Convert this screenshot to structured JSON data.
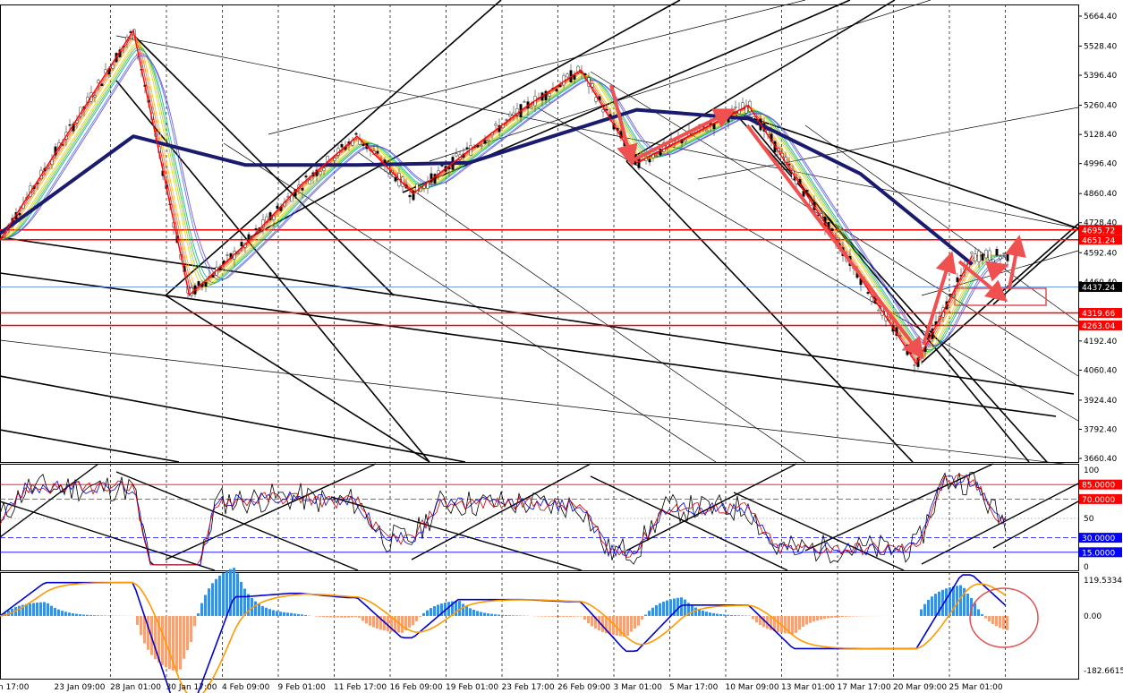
{
  "chart_data": [
    {
      "type": "candlestick",
      "panel": "price",
      "ylim": [
        3660.4,
        5664.4
      ],
      "y_ticks": [
        "5664.40",
        "5528.40",
        "5396.40",
        "5260.40",
        "5128.40",
        "4996.40",
        "4860.40",
        "4728.40",
        "4592.40",
        "4460.40",
        "4324.40",
        "4192.40",
        "4060.40",
        "3924.40",
        "3792.40",
        "3660.40"
      ],
      "price_levels": [
        {
          "value": 4695.72,
          "label": "4695.72",
          "color": "#ff0000"
        },
        {
          "value": 4651.24,
          "label": "4651.24",
          "color": "#ff0000"
        },
        {
          "value": 4319.66,
          "label": "4319.66",
          "color": "#ff0000"
        },
        {
          "value": 4263.04,
          "label": "4263.04",
          "color": "#ff0000"
        }
      ],
      "current_price": {
        "value": 4437.24,
        "label": "4437.24"
      },
      "x_labels": [
        "n 17:00",
        "23 Jan 09:00",
        "28 Jan 01:00",
        "30 Jan 17:00",
        "4 Feb 09:00",
        "9 Feb 01:00",
        "11 Feb 17:00",
        "16 Feb 09:00",
        "19 Feb 01:00",
        "23 Feb 17:00",
        "26 Feb 09:00",
        "3 Mar 01:00",
        "5 Mar 17:00",
        "10 Mar 09:00",
        "13 Mar 01:00",
        "17 Mar 17:00",
        "20 Mar 09:00",
        "25 Mar 01:00"
      ],
      "zigzag_pivots": [
        {
          "x": "start",
          "y": 4650
        },
        {
          "x": "28 Jan 01:00",
          "y": 5600
        },
        {
          "x": "30 Jan 17:00",
          "y": 4400
        },
        {
          "x": "4 Feb 09:00",
          "y": 4630
        },
        {
          "x": "9 Feb 01:00",
          "y": 4900
        },
        {
          "x": "11 Feb 17:00",
          "y": 5120
        },
        {
          "x": "16 Feb 09:00",
          "y": 4860
        },
        {
          "x": "23 Feb 17:00",
          "y": 5250
        },
        {
          "x": "26 Feb 09:00",
          "y": 5420
        },
        {
          "x": "3 Mar 01:00",
          "y": 5000
        },
        {
          "x": "10 Mar 09:00",
          "y": 5260
        },
        {
          "x": "20 Mar 09:00",
          "y": 4090
        },
        {
          "x": "25 Mar 01:00",
          "y": 4580
        }
      ],
      "long_ma_line": [
        {
          "x": "start",
          "y": 4680
        },
        {
          "x": "28 Jan 01:00",
          "y": 5120
        },
        {
          "x": "4 Feb 09:00",
          "y": 4990
        },
        {
          "x": "11 Feb 17:00",
          "y": 4990
        },
        {
          "x": "19 Feb 01:00",
          "y": 5000
        },
        {
          "x": "26 Feb 09:00",
          "y": 5160
        },
        {
          "x": "3 Mar 01:00",
          "y": 5240
        },
        {
          "x": "10 Mar 09:00",
          "y": 5200
        },
        {
          "x": "17 Mar 17:00",
          "y": 4950
        },
        {
          "x": "25 Mar 01:00",
          "y": 4540
        }
      ]
    },
    {
      "type": "line",
      "panel": "oscillator",
      "ylim": [
        0,
        100
      ],
      "y_ticks": [
        "100",
        "50",
        "0"
      ],
      "levels": [
        {
          "value": 85,
          "label": "85.0000",
          "color": "#ff0000"
        },
        {
          "value": 70,
          "label": "70.0000",
          "color": "#ff0000"
        },
        {
          "value": 30,
          "label": "30.0000",
          "color": "#0000ff"
        },
        {
          "value": 15,
          "label": "15.0000",
          "color": "#0000ff"
        }
      ]
    },
    {
      "type": "bar",
      "panel": "macd_histogram",
      "ylim": [
        -182.6615,
        119.5334
      ],
      "y_ticks": [
        "119.5334",
        "0.00",
        "-182.6615"
      ]
    }
  ],
  "colors": {
    "long_ma": "#1a1a6e",
    "zigzag": "#ff0000",
    "arrows": "#f05050",
    "levels": "#ff0000",
    "current_price": "#000000",
    "histogram_positive": "#3a8fe0",
    "histogram_negative": "#f4a27a",
    "macd_line": "#0000cc",
    "signal_line": "#ff9900"
  }
}
